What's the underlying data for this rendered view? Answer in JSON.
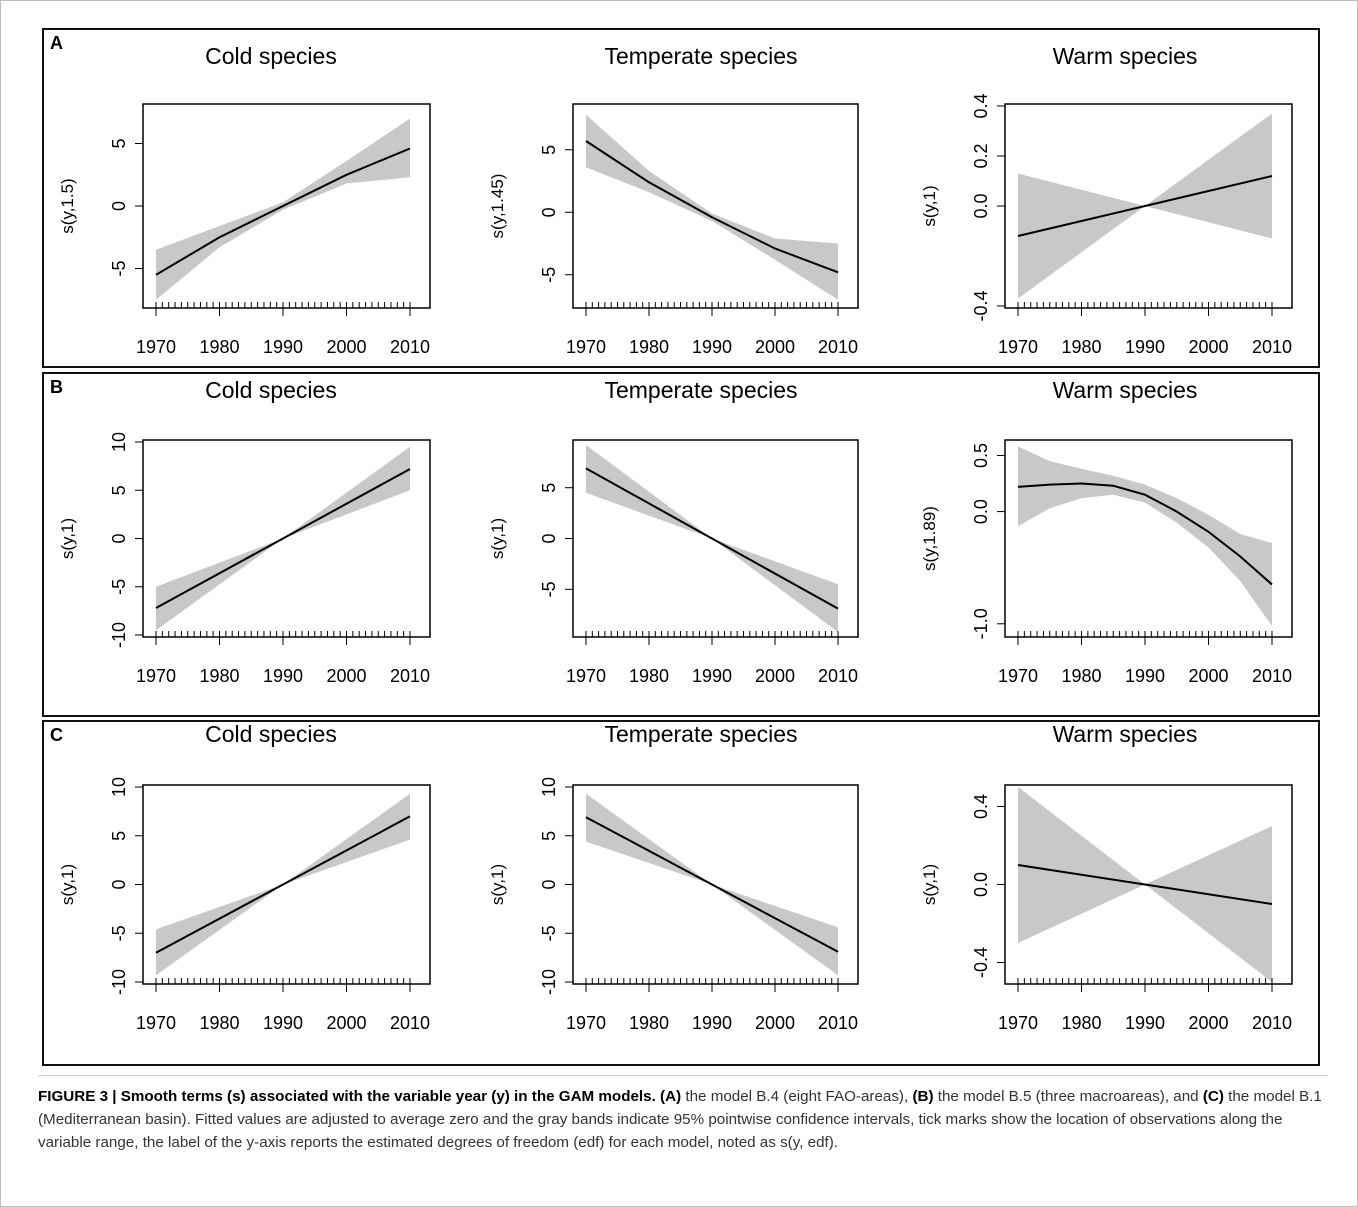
{
  "panels": [
    {
      "letter": "A"
    },
    {
      "letter": "B"
    },
    {
      "letter": "C"
    }
  ],
  "chart_data": [
    {
      "type": "line",
      "panel": "A",
      "title": "Cold species",
      "ylabel": "s(y,1.5)",
      "xlim": [
        1970,
        2010
      ],
      "ylim": [
        -8,
        8
      ],
      "xticks": [
        1970,
        1980,
        1990,
        2000,
        2010
      ],
      "yticks": [
        -5,
        0,
        5
      ],
      "x": [
        1970,
        1980,
        1990,
        2000,
        2010
      ],
      "series": [
        {
          "role": "fit",
          "values": [
            -5.5,
            -2.5,
            0,
            2.5,
            4.6
          ]
        },
        {
          "role": "lower",
          "values": [
            -7.5,
            -3.3,
            -0.3,
            1.8,
            2.3
          ]
        },
        {
          "role": "upper",
          "values": [
            -3.5,
            -1.6,
            0.3,
            3.6,
            7.0
          ]
        }
      ]
    },
    {
      "type": "line",
      "panel": "A",
      "title": "Temperate species",
      "ylabel": "s(y,1.45)",
      "xlim": [
        1970,
        2010
      ],
      "ylim": [
        -7.5,
        8.5
      ],
      "xticks": [
        1970,
        1980,
        1990,
        2000,
        2010
      ],
      "yticks": [
        -5,
        0,
        5
      ],
      "x": [
        1970,
        1980,
        1990,
        2000,
        2010
      ],
      "series": [
        {
          "role": "fit",
          "values": [
            5.7,
            2.4,
            -0.4,
            -2.9,
            -4.8
          ]
        },
        {
          "role": "lower",
          "values": [
            3.6,
            1.6,
            -0.7,
            -3.8,
            -7.0
          ]
        },
        {
          "role": "upper",
          "values": [
            7.8,
            3.3,
            -0.1,
            -2.1,
            -2.5
          ]
        }
      ]
    },
    {
      "type": "line",
      "panel": "A",
      "title": "Warm species",
      "ylabel": "s(y,1)",
      "xlim": [
        1970,
        2010
      ],
      "ylim": [
        -0.4,
        0.4
      ],
      "xticks": [
        1970,
        1980,
        1990,
        2000,
        2010
      ],
      "yticks": [
        -0.4,
        0.0,
        0.2,
        0.4
      ],
      "x": [
        1970,
        1990,
        2010
      ],
      "series": [
        {
          "role": "fit",
          "values": [
            -0.12,
            0.0,
            0.12
          ]
        },
        {
          "role": "lower",
          "values": [
            -0.37,
            0.0,
            -0.13
          ]
        },
        {
          "role": "upper",
          "values": [
            0.13,
            0.0,
            0.37
          ]
        }
      ]
    },
    {
      "type": "line",
      "panel": "B",
      "title": "Cold species",
      "ylabel": "s(y,1)",
      "xlim": [
        1970,
        2010
      ],
      "ylim": [
        -10,
        10
      ],
      "xticks": [
        1970,
        1980,
        1990,
        2000,
        2010
      ],
      "yticks": [
        -10,
        -5,
        0,
        5,
        10
      ],
      "x": [
        1970,
        1990,
        2010
      ],
      "series": [
        {
          "role": "fit",
          "values": [
            -7.2,
            0,
            7.2
          ]
        },
        {
          "role": "lower",
          "values": [
            -9.5,
            0,
            5.0
          ]
        },
        {
          "role": "upper",
          "values": [
            -5.0,
            0,
            9.5
          ]
        }
      ]
    },
    {
      "type": "line",
      "panel": "B",
      "title": "Temperate species",
      "ylabel": "s(y,1)",
      "xlim": [
        1970,
        2010
      ],
      "ylim": [
        -9.5,
        9.5
      ],
      "xticks": [
        1970,
        1980,
        1990,
        2000,
        2010
      ],
      "yticks": [
        -5,
        0,
        5
      ],
      "x": [
        1970,
        1990,
        2010
      ],
      "series": [
        {
          "role": "fit",
          "values": [
            6.9,
            0,
            -6.9
          ]
        },
        {
          "role": "lower",
          "values": [
            4.5,
            0,
            -9.2
          ]
        },
        {
          "role": "upper",
          "values": [
            9.2,
            0,
            -4.5
          ]
        }
      ]
    },
    {
      "type": "line",
      "panel": "B",
      "title": "Warm species",
      "ylabel": "s(y,1.89)",
      "xlim": [
        1970,
        2010
      ],
      "ylim": [
        -1.1,
        0.62
      ],
      "xticks": [
        1970,
        1980,
        1990,
        2000,
        2010
      ],
      "yticks": [
        -1.0,
        0.0,
        0.5
      ],
      "x": [
        1970,
        1975,
        1980,
        1985,
        1990,
        1995,
        2000,
        2005,
        2010
      ],
      "series": [
        {
          "role": "fit",
          "values": [
            0.22,
            0.24,
            0.25,
            0.23,
            0.15,
            0.0,
            -0.18,
            -0.4,
            -0.65
          ]
        },
        {
          "role": "lower",
          "values": [
            -0.13,
            0.03,
            0.12,
            0.15,
            0.08,
            -0.1,
            -0.32,
            -0.62,
            -1.02
          ]
        },
        {
          "role": "upper",
          "values": [
            0.58,
            0.45,
            0.38,
            0.32,
            0.24,
            0.12,
            -0.03,
            -0.2,
            -0.28
          ]
        }
      ]
    },
    {
      "type": "line",
      "panel": "C",
      "title": "Cold species",
      "ylabel": "s(y,1)",
      "xlim": [
        1970,
        2010
      ],
      "ylim": [
        -10,
        10
      ],
      "xticks": [
        1970,
        1980,
        1990,
        2000,
        2010
      ],
      "yticks": [
        -10,
        -5,
        0,
        5,
        10
      ],
      "x": [
        1970,
        1990,
        2010
      ],
      "series": [
        {
          "role": "fit",
          "values": [
            -7.0,
            0,
            7.0
          ]
        },
        {
          "role": "lower",
          "values": [
            -9.3,
            0,
            4.6
          ]
        },
        {
          "role": "upper",
          "values": [
            -4.6,
            0,
            9.3
          ]
        }
      ]
    },
    {
      "type": "line",
      "panel": "C",
      "title": "Temperate species",
      "ylabel": "s(y,1)",
      "xlim": [
        1970,
        2010
      ],
      "ylim": [
        -10,
        10
      ],
      "xticks": [
        1970,
        1980,
        1990,
        2000,
        2010
      ],
      "yticks": [
        -10,
        -5,
        0,
        5,
        10
      ],
      "x": [
        1970,
        1990,
        2010
      ],
      "series": [
        {
          "role": "fit",
          "values": [
            6.9,
            0,
            -6.9
          ]
        },
        {
          "role": "lower",
          "values": [
            4.4,
            0,
            -9.3
          ]
        },
        {
          "role": "upper",
          "values": [
            9.3,
            0,
            -4.4
          ]
        }
      ]
    },
    {
      "type": "line",
      "panel": "C",
      "title": "Warm species",
      "ylabel": "s(y,1)",
      "xlim": [
        1970,
        2010
      ],
      "ylim": [
        -0.5,
        0.5
      ],
      "xticks": [
        1970,
        1980,
        1990,
        2000,
        2010
      ],
      "yticks": [
        -0.4,
        0.0,
        0.4
      ],
      "x": [
        1970,
        1990,
        2010
      ],
      "series": [
        {
          "role": "fit",
          "values": [
            0.1,
            0.0,
            -0.1
          ]
        },
        {
          "role": "lower",
          "values": [
            -0.3,
            0.0,
            -0.5
          ]
        },
        {
          "role": "upper",
          "values": [
            0.5,
            0.0,
            0.3
          ]
        }
      ]
    }
  ],
  "caption": {
    "figure_label": "FIGURE 3 | Smooth terms (s) associated with the variable year (y) in the GAM models.",
    "ref_a": "(A)",
    "text_a": " the model B.4 (eight FAO-areas), ",
    "ref_b": "(B)",
    "text_b": " the model B.5 (three macroareas), and ",
    "ref_c": "(C)",
    "text_c": " the model B.1 (Mediterranean basin). Fitted values are adjusted to average zero and the gray bands indicate 95% pointwise confidence intervals, tick marks show the location of observations along the variable range, the label of the y-axis reports the estimated degrees of freedom (edf) for each model, noted as s(y, edf)."
  }
}
